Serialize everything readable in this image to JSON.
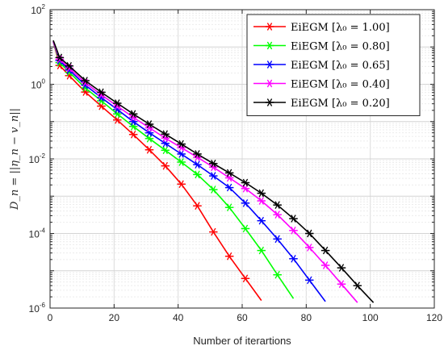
{
  "chart_data": {
    "type": "line",
    "xlabel": "Number of iterartions",
    "ylabel": "D_n = ||η_n − v_n||",
    "xlim": [
      0,
      120
    ],
    "ylim_exponent": [
      -6,
      2
    ],
    "y_scale": "log",
    "x_ticks": [
      "0",
      "20",
      "40",
      "60",
      "80",
      "100",
      "120"
    ],
    "y_ticks": [
      {
        "base": "10",
        "exp": "-6"
      },
      {
        "base": "10",
        "exp": "-4"
      },
      {
        "base": "10",
        "exp": "-2"
      },
      {
        "base": "10",
        "exp": "0"
      },
      {
        "base": "10",
        "exp": "2"
      }
    ],
    "grid": true,
    "legend_position": "top-right",
    "marker": "asterisk",
    "series": [
      {
        "name": "EiEGM [λ₀ = 1.00]",
        "color": "#ff0000",
        "x": [
          1,
          3,
          6,
          11,
          16,
          21,
          26,
          31,
          36,
          41,
          46,
          51,
          56,
          61,
          66
        ],
        "y": [
          14,
          3.2,
          1.7,
          0.62,
          0.26,
          0.11,
          0.045,
          0.0175,
          0.0065,
          0.0021,
          0.00055,
          0.00011,
          2.45e-05,
          6.2e-06,
          1.6e-06
        ]
      },
      {
        "name": "EiEGM [λ₀ = 0.80]",
        "color": "#00ff00",
        "x": [
          1,
          3,
          6,
          11,
          16,
          21,
          26,
          31,
          36,
          41,
          46,
          51,
          56,
          61,
          66,
          71,
          76
        ],
        "y": [
          14,
          3.8,
          2.1,
          0.8,
          0.36,
          0.16,
          0.074,
          0.035,
          0.017,
          0.0082,
          0.0038,
          0.0015,
          0.0005,
          0.000135,
          3.5e-05,
          7.8e-06,
          1.8e-06
        ]
      },
      {
        "name": "EiEGM [λ₀ = 0.65]",
        "color": "#0000ff",
        "x": [
          1,
          3,
          6,
          11,
          16,
          21,
          26,
          31,
          36,
          41,
          46,
          51,
          56,
          61,
          66,
          71,
          76,
          81,
          86
        ],
        "y": [
          14,
          4.3,
          2.4,
          0.95,
          0.44,
          0.21,
          0.1,
          0.05,
          0.026,
          0.0135,
          0.007,
          0.0035,
          0.0017,
          0.00065,
          0.00022,
          7.1e-05,
          2.1e-05,
          5.6e-06,
          1.5e-06
        ]
      },
      {
        "name": "EiEGM [λ₀ = 0.40]",
        "color": "#ff00ff",
        "x": [
          1,
          3,
          6,
          11,
          16,
          21,
          26,
          31,
          36,
          41,
          46,
          51,
          56,
          61,
          66,
          71,
          76,
          81,
          86,
          91,
          96
        ],
        "y": [
          14,
          4.7,
          2.7,
          1.1,
          0.52,
          0.26,
          0.13,
          0.068,
          0.036,
          0.02,
          0.011,
          0.006,
          0.0031,
          0.0016,
          0.00075,
          0.00032,
          0.00012,
          4.2e-05,
          1.4e-05,
          4.4e-06,
          1.4e-06
        ]
      },
      {
        "name": "EiEGM [λ₀ = 0.20]",
        "color": "#000000",
        "x": [
          1,
          3,
          6,
          11,
          16,
          21,
          26,
          31,
          36,
          41,
          46,
          51,
          56,
          61,
          66,
          71,
          76,
          81,
          86,
          91,
          96,
          101
        ],
        "y": [
          15,
          5.2,
          3.1,
          1.25,
          0.61,
          0.31,
          0.16,
          0.085,
          0.046,
          0.025,
          0.0135,
          0.0075,
          0.0042,
          0.0023,
          0.0012,
          0.00058,
          0.00025,
          0.0001,
          3.5e-05,
          1.2e-05,
          4e-06,
          1.4e-06
        ]
      }
    ]
  }
}
